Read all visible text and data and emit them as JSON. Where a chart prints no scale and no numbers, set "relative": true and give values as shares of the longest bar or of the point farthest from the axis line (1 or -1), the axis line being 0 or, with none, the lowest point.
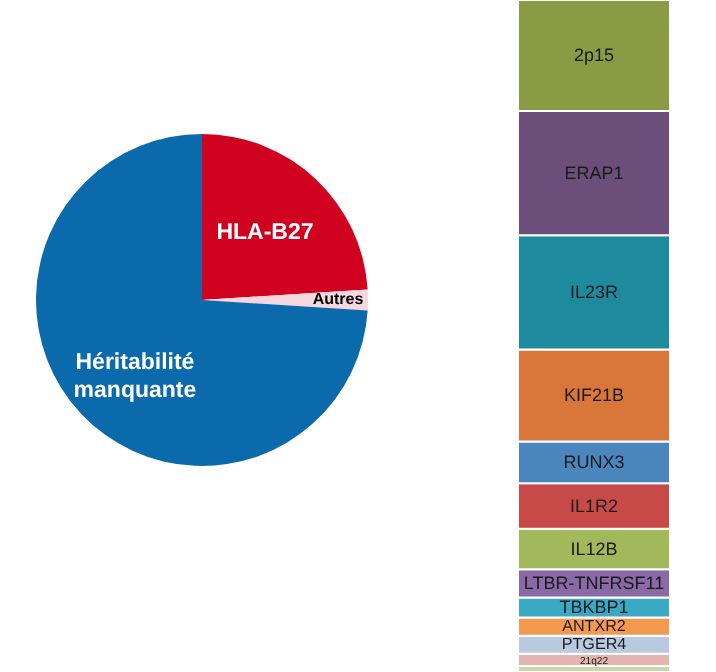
{
  "chart_data": [
    {
      "type": "pie",
      "categories": [
        "HLA-B27",
        "Autres",
        "Héritabilité manquante"
      ],
      "values": [
        24,
        2,
        74
      ],
      "colors": [
        "#d0021f",
        "#f6d6df",
        "#0a6aab"
      ]
    },
    {
      "type": "bar",
      "stacked": true,
      "relative": true,
      "categories": [
        null
      ],
      "series": [
        {
          "color": "#c8d8a8",
          "values": [
            0.009
          ]
        },
        {
          "name": "21q22",
          "color": "#e3b4b0",
          "values": [
            0.018
          ]
        },
        {
          "name": "PTGER4",
          "color": "#b8c9e0",
          "values": [
            0.027
          ]
        },
        {
          "name": "ANTXR2",
          "color": "#f39a50",
          "values": [
            0.027
          ]
        },
        {
          "name": "TBKBP1",
          "color": "#3aaac4",
          "values": [
            0.03
          ]
        },
        {
          "name": "LTBR-TNFRSF11",
          "color": "#8a6aa6",
          "values": [
            0.042
          ]
        },
        {
          "name": "IL12B",
          "color": "#a3b85a",
          "values": [
            0.06
          ]
        },
        {
          "name": "IL1R2",
          "color": "#c84a48",
          "values": [
            0.068
          ]
        },
        {
          "name": "RUNX3",
          "color": "#4a86bd",
          "values": [
            0.062
          ]
        },
        {
          "name": "KIF21B",
          "color": "#d9773a",
          "values": [
            0.137
          ]
        },
        {
          "name": "IL23R",
          "color": "#1e8a9e",
          "values": [
            0.17
          ]
        },
        {
          "name": "ERAP1",
          "color": "#6b4f7a",
          "values": [
            0.185
          ]
        },
        {
          "name": "2p15",
          "color": "#8a9a45",
          "values": [
            0.165
          ]
        }
      ]
    }
  ]
}
